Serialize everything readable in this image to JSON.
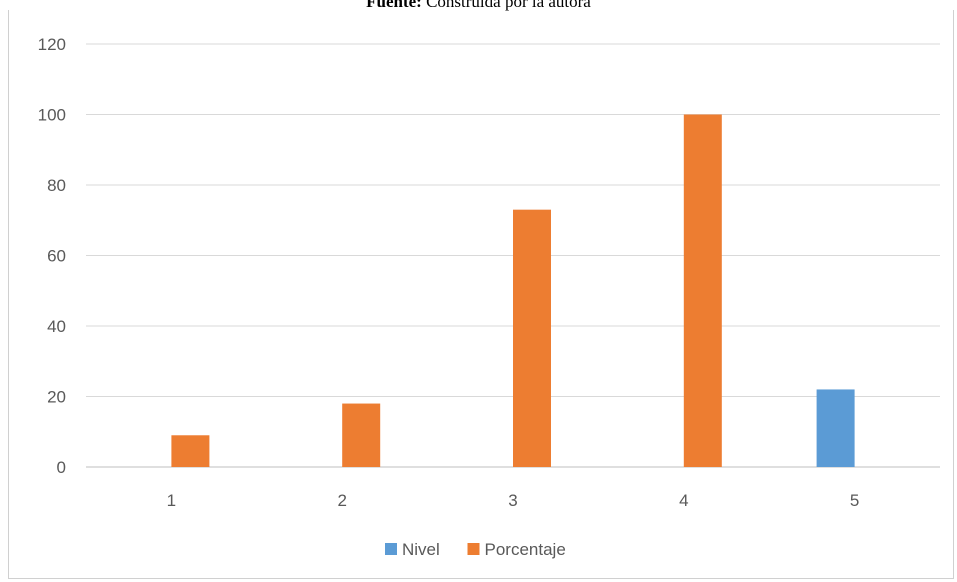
{
  "caption": {
    "bold": "Fuente:",
    "text": "Construida por la autora"
  },
  "chart_data": {
    "type": "bar",
    "categories": [
      "1",
      "2",
      "3",
      "4",
      "5"
    ],
    "series": [
      {
        "name": "Nivel",
        "color": "#5B9BD5",
        "values": [
          null,
          null,
          null,
          null,
          22
        ]
      },
      {
        "name": "Porcentaje",
        "color": "#ED7D31",
        "values": [
          9,
          18,
          73,
          100,
          null
        ]
      }
    ],
    "ylim": [
      0,
      120
    ],
    "yticks": [
      0,
      20,
      40,
      60,
      80,
      100,
      120
    ],
    "grid": true,
    "legend_position": "bottom"
  }
}
